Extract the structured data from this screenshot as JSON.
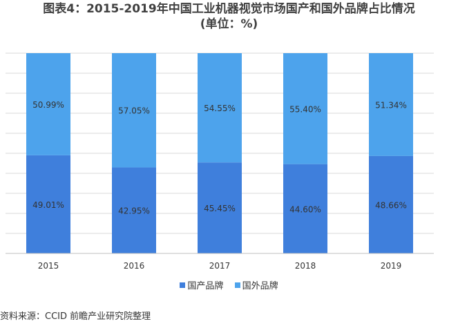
{
  "chart_data": {
    "type": "bar",
    "stacked": true,
    "title": "图表4：2015-2019年中国工业机器视觉市场国产和国外品牌占比情况",
    "subtitle": "(单位：%)",
    "categories": [
      "2015",
      "2016",
      "2017",
      "2018",
      "2019"
    ],
    "series": [
      {
        "name": "国产品牌",
        "color": "#3f7fdc",
        "values": [
          49.01,
          42.95,
          45.45,
          44.6,
          48.66
        ],
        "labels": [
          "49.01%",
          "42.95%",
          "45.45%",
          "44.60%",
          "48.66%"
        ]
      },
      {
        "name": "国外品牌",
        "color": "#4da3ec",
        "values": [
          50.99,
          57.05,
          54.55,
          55.4,
          51.34
        ],
        "labels": [
          "50.99%",
          "57.05%",
          "54.55%",
          "55.40%",
          "51.34%"
        ]
      }
    ],
    "ylim": [
      0,
      100
    ],
    "grid": true,
    "legend_position": "bottom"
  },
  "source": "资料来源：CCID 前瞻产业研究院整理"
}
